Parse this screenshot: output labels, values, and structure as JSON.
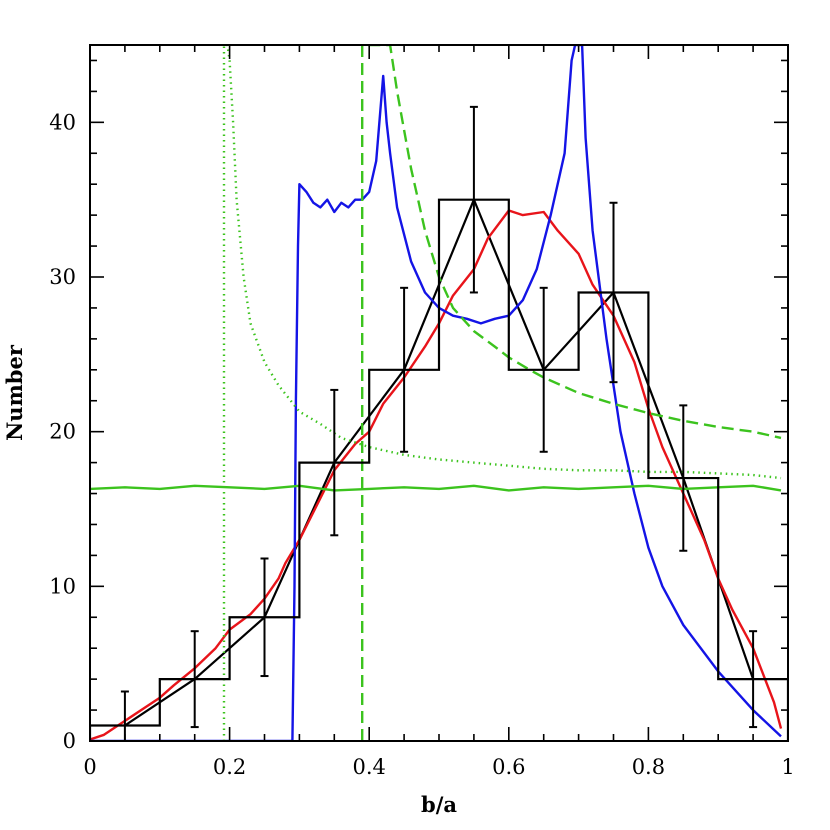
{
  "chart_data": {
    "type": "line",
    "title": "",
    "xlabel": "b/a",
    "ylabel": "Number",
    "xlim": [
      0,
      1
    ],
    "ylim": [
      0,
      45
    ],
    "x_ticks": [
      0,
      0.2,
      0.4,
      0.6,
      0.8,
      1
    ],
    "x_tick_labels": [
      "0",
      "0.2",
      "0.4",
      "0.6",
      "0.8",
      "1"
    ],
    "y_ticks": [
      0,
      10,
      20,
      30,
      40
    ],
    "y_tick_labels": [
      "0",
      "10",
      "20",
      "30",
      "40"
    ],
    "grid": false,
    "legend": "none",
    "histogram": {
      "color": "#000000",
      "bin_edges": [
        0,
        0.1,
        0.2,
        0.3,
        0.4,
        0.5,
        0.6,
        0.7,
        0.8,
        0.9,
        1.0
      ],
      "counts": [
        1,
        4,
        8,
        18,
        24,
        35,
        24,
        29,
        17,
        4
      ],
      "bin_centers": [
        0.05,
        0.15,
        0.25,
        0.35,
        0.45,
        0.55,
        0.65,
        0.75,
        0.85,
        0.95
      ],
      "errors": [
        2.2,
        3.1,
        3.8,
        4.7,
        5.3,
        6.0,
        5.3,
        5.8,
        4.7,
        3.1
      ]
    },
    "series": [
      {
        "color": "#000000",
        "style": "solid",
        "x": [
          0.05,
          0.15,
          0.25,
          0.35,
          0.45,
          0.55,
          0.65,
          0.75,
          0.85,
          0.95
        ],
        "y": [
          1,
          4,
          8,
          18,
          24,
          35,
          24,
          29,
          17,
          4
        ]
      },
      {
        "color": "#e8141a",
        "style": "solid",
        "x": [
          0,
          0.02,
          0.05,
          0.08,
          0.1,
          0.12,
          0.15,
          0.18,
          0.2,
          0.23,
          0.25,
          0.27,
          0.28,
          0.3,
          0.32,
          0.35,
          0.38,
          0.4,
          0.42,
          0.45,
          0.48,
          0.5,
          0.52,
          0.55,
          0.57,
          0.6,
          0.62,
          0.65,
          0.67,
          0.7,
          0.72,
          0.75,
          0.78,
          0.8,
          0.82,
          0.85,
          0.88,
          0.9,
          0.92,
          0.95,
          0.98,
          0.99
        ],
        "y": [
          0.1,
          0.4,
          1.3,
          2.2,
          2.8,
          3.6,
          4.7,
          6.0,
          7.2,
          8.2,
          9.2,
          10.5,
          11.5,
          13.0,
          14.8,
          17.5,
          19.2,
          20.0,
          21.8,
          23.5,
          25.5,
          27.0,
          28.8,
          30.5,
          32.5,
          34.3,
          34.0,
          34.2,
          33.0,
          31.5,
          29.5,
          27.5,
          24.5,
          21.5,
          19.0,
          16.0,
          13.0,
          10.5,
          8.5,
          6.0,
          2.5,
          0.8
        ]
      },
      {
        "color": "#1414e6",
        "style": "solid",
        "x": [
          0,
          0.29,
          0.293,
          0.295,
          0.298,
          0.3,
          0.31,
          0.32,
          0.33,
          0.34,
          0.35,
          0.36,
          0.37,
          0.38,
          0.39,
          0.4,
          0.41,
          0.42,
          0.425,
          0.43,
          0.44,
          0.46,
          0.48,
          0.5,
          0.52,
          0.54,
          0.56,
          0.58,
          0.6,
          0.62,
          0.64,
          0.66,
          0.68,
          0.69,
          0.695,
          0.7,
          0.705,
          0.71,
          0.72,
          0.74,
          0.76,
          0.78,
          0.8,
          0.82,
          0.85,
          0.9,
          0.95,
          0.99
        ],
        "y": [
          0,
          0,
          10,
          22,
          32,
          36,
          35.5,
          34.8,
          34.5,
          35,
          34.2,
          34.8,
          34.5,
          35,
          35,
          35.5,
          37.5,
          43,
          40,
          38,
          34.5,
          31,
          29,
          28,
          27.5,
          27.3,
          27,
          27.3,
          27.5,
          28.5,
          30.5,
          34,
          38,
          44,
          45,
          45,
          45,
          39,
          33,
          26,
          20,
          16,
          12.5,
          10,
          7.5,
          4.5,
          2,
          0.3
        ]
      },
      {
        "color": "#3cc31e",
        "style": "solid",
        "x": [
          0,
          0.05,
          0.1,
          0.15,
          0.2,
          0.25,
          0.3,
          0.35,
          0.4,
          0.45,
          0.5,
          0.55,
          0.6,
          0.65,
          0.7,
          0.75,
          0.8,
          0.85,
          0.9,
          0.95,
          0.99
        ],
        "y": [
          16.3,
          16.4,
          16.3,
          16.5,
          16.4,
          16.3,
          16.5,
          16.2,
          16.3,
          16.4,
          16.3,
          16.5,
          16.2,
          16.4,
          16.3,
          16.4,
          16.5,
          16.3,
          16.4,
          16.5,
          16.2
        ]
      },
      {
        "color": "#3cc31e",
        "style": "dotted",
        "x": [
          0.192,
          0.192,
          0.194,
          0.197,
          0.2,
          0.205,
          0.21,
          0.22,
          0.23,
          0.25,
          0.27,
          0.3,
          0.33,
          0.36,
          0.4,
          0.45,
          0.5,
          0.55,
          0.6,
          0.65,
          0.7,
          0.75,
          0.8,
          0.85,
          0.9,
          0.95,
          0.99
        ],
        "y": [
          0,
          45,
          45,
          45,
          44,
          40,
          35,
          30,
          27,
          24.5,
          23,
          21.3,
          20.5,
          19.6,
          19.0,
          18.5,
          18.2,
          18.0,
          17.8,
          17.6,
          17.5,
          17.5,
          17.4,
          17.4,
          17.3,
          17.2,
          17.0
        ]
      },
      {
        "color": "#3cc31e",
        "style": "dashed",
        "x": [
          0.39,
          0.39,
          0.43,
          0.44,
          0.45,
          0.46,
          0.47,
          0.48,
          0.5,
          0.52,
          0.55,
          0.58,
          0.6,
          0.63,
          0.65,
          0.7,
          0.75,
          0.8,
          0.85,
          0.9,
          0.95,
          0.99
        ],
        "y": [
          0,
          45,
          45,
          42,
          39.5,
          37,
          35,
          33,
          30,
          28,
          26.5,
          25.5,
          24.8,
          24,
          23.5,
          22.5,
          21.8,
          21.2,
          20.7,
          20.3,
          20.0,
          19.6
        ]
      }
    ]
  }
}
